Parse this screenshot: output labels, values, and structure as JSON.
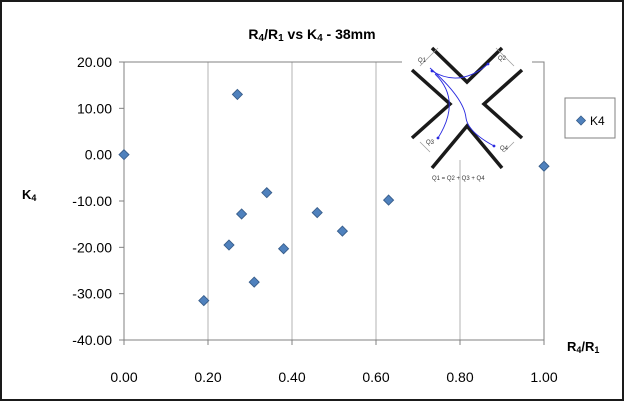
{
  "chart_data": {
    "type": "scatter",
    "title_parts": [
      "R",
      "4",
      "/R",
      "1",
      " vs K",
      "4",
      " - 38mm"
    ],
    "xlabel_parts": [
      "R",
      "4",
      "/R",
      "1"
    ],
    "ylabel_parts": [
      "K",
      "4"
    ],
    "xlim": [
      0,
      1
    ],
    "ylim": [
      -40,
      20
    ],
    "x_ticks": [
      0,
      0.2,
      0.4,
      0.6,
      0.8,
      1.0
    ],
    "x_tick_labels": [
      "0.00",
      "0.20",
      "0.40",
      "0.60",
      "0.80",
      "1.00"
    ],
    "y_ticks": [
      20,
      10,
      0,
      -10,
      -20,
      -30,
      -40
    ],
    "y_tick_labels": [
      "20.00",
      "10.00",
      "0.00",
      "-10.00",
      "-20.00",
      "-30.00",
      "-40.00"
    ],
    "grid": "vertical",
    "legend_position": "right",
    "series": [
      {
        "name": "K4",
        "color": "#4f81bd",
        "marker": "diamond",
        "points": [
          {
            "x": 0.0,
            "y": 0.0
          },
          {
            "x": 0.27,
            "y": 13.0
          },
          {
            "x": 0.19,
            "y": -31.5
          },
          {
            "x": 0.25,
            "y": -19.5
          },
          {
            "x": 0.28,
            "y": -12.8
          },
          {
            "x": 0.31,
            "y": -27.5
          },
          {
            "x": 0.34,
            "y": -8.2
          },
          {
            "x": 0.38,
            "y": -20.3
          },
          {
            "x": 0.46,
            "y": -12.5
          },
          {
            "x": 0.52,
            "y": -16.5
          },
          {
            "x": 0.63,
            "y": -9.8
          },
          {
            "x": 1.0,
            "y": -2.5
          }
        ]
      }
    ],
    "inset": {
      "name": "intersection-diagram",
      "labels": [
        "Q1",
        "Q2",
        "Q3",
        "Q4"
      ],
      "equation": "Q1 = Q2 + Q3 + Q4"
    }
  },
  "colors": {
    "frame": "#1a1a1a",
    "grid": "#b3b3b3",
    "axis": "#808080",
    "text": "#000000",
    "marker_edge": "#385d8a"
  }
}
